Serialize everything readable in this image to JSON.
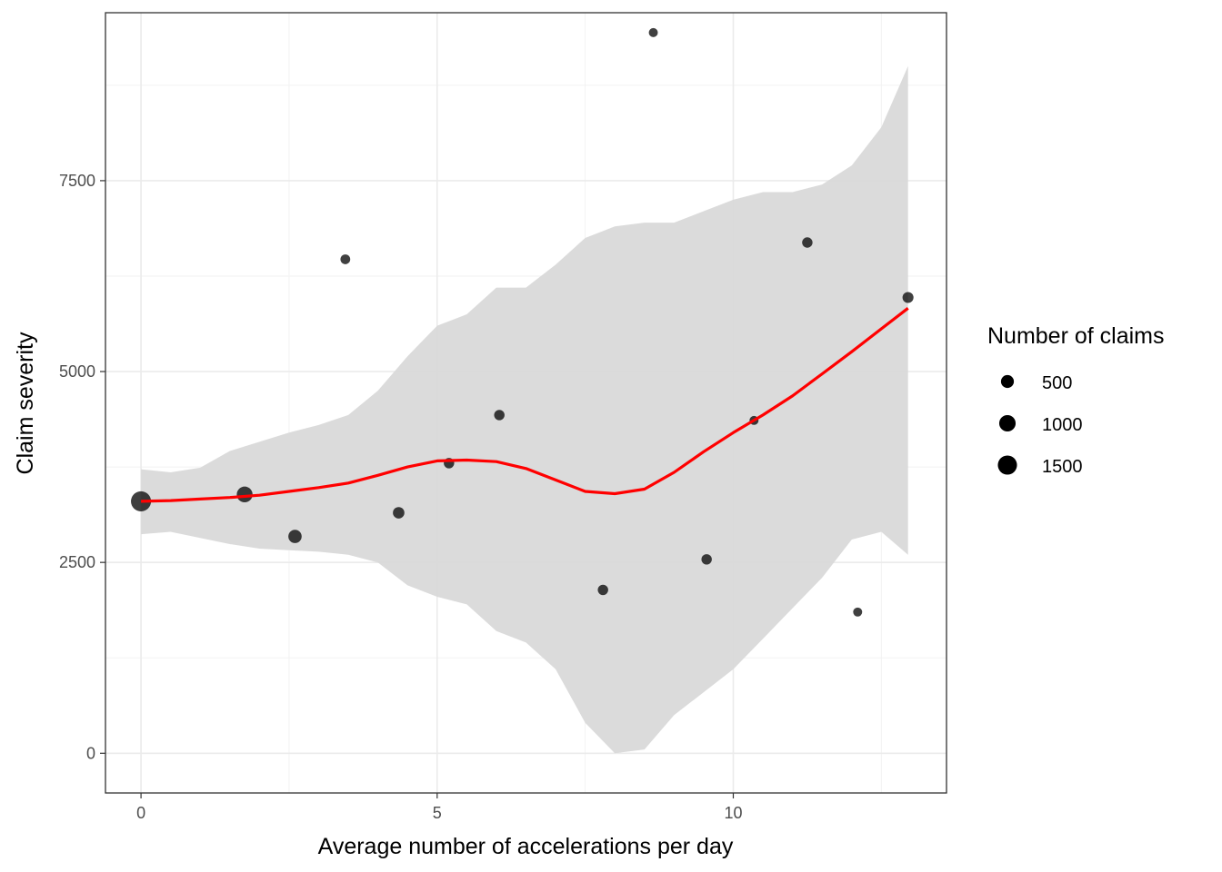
{
  "chart_data": {
    "type": "scatter",
    "xlabel": "Average number of accelerations per day",
    "ylabel": "Claim severity",
    "xlim": [
      -0.6,
      13.6
    ],
    "ylim": [
      -520,
      9700
    ],
    "x_ticks": [
      0,
      5,
      10
    ],
    "y_ticks": [
      0,
      2500,
      5000,
      7500
    ],
    "grid": true,
    "points": [
      {
        "x": 0.0,
        "y": 3300,
        "n": 1700
      },
      {
        "x": 1.75,
        "y": 3390,
        "n": 900
      },
      {
        "x": 2.6,
        "y": 2840,
        "n": 550
      },
      {
        "x": 3.45,
        "y": 6470,
        "n": 200
      },
      {
        "x": 4.35,
        "y": 3150,
        "n": 350
      },
      {
        "x": 5.2,
        "y": 3800,
        "n": 250
      },
      {
        "x": 6.05,
        "y": 4430,
        "n": 250
      },
      {
        "x": 7.8,
        "y": 2140,
        "n": 250
      },
      {
        "x": 8.65,
        "y": 9440,
        "n": 150
      },
      {
        "x": 9.55,
        "y": 2540,
        "n": 250
      },
      {
        "x": 10.35,
        "y": 4360,
        "n": 150
      },
      {
        "x": 11.25,
        "y": 6690,
        "n": 250
      },
      {
        "x": 12.1,
        "y": 1850,
        "n": 150
      },
      {
        "x": 12.95,
        "y": 5970,
        "n": 300
      }
    ],
    "smooth": {
      "color": "#ff0000",
      "band_color": "#d9d9d9",
      "x": [
        0.0,
        0.5,
        1.0,
        1.5,
        2.0,
        2.5,
        3.0,
        3.5,
        4.0,
        4.5,
        5.0,
        5.5,
        6.0,
        6.5,
        7.0,
        7.5,
        8.0,
        8.5,
        9.0,
        9.5,
        10.0,
        10.5,
        11.0,
        11.5,
        12.0,
        12.5,
        12.95
      ],
      "y": [
        3300,
        3310,
        3330,
        3350,
        3380,
        3430,
        3480,
        3540,
        3640,
        3750,
        3830,
        3840,
        3820,
        3730,
        3580,
        3430,
        3400,
        3460,
        3680,
        3950,
        4200,
        4430,
        4680,
        4970,
        5260,
        5560,
        5830
      ],
      "lower": [
        2870,
        2900,
        2820,
        2740,
        2680,
        2660,
        2640,
        2600,
        2500,
        2200,
        2050,
        1950,
        1600,
        1450,
        1100,
        400,
        0,
        50,
        500,
        800,
        1100,
        1500,
        1900,
        2300,
        2800,
        2900,
        2600
      ],
      "upper": [
        3720,
        3680,
        3740,
        3960,
        4080,
        4200,
        4300,
        4430,
        4750,
        5200,
        5600,
        5750,
        6100,
        6100,
        6400,
        6750,
        6900,
        6950,
        6950,
        7100,
        7250,
        7350,
        7350,
        7450,
        7700,
        8200,
        9000
      ]
    },
    "legend": {
      "title": "Number of claims",
      "position": "right",
      "entries": [
        {
          "label": "500",
          "value": 500
        },
        {
          "label": "1000",
          "value": 1000
        },
        {
          "label": "1500",
          "value": 1500
        }
      ]
    }
  }
}
